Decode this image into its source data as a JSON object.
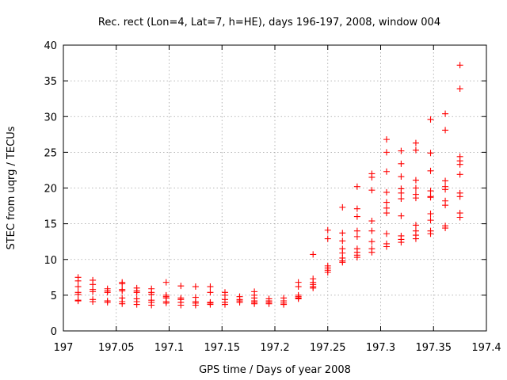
{
  "chart_data": {
    "type": "scatter",
    "title": "Rec. rect (Lon=4, Lat=7, h=HE), days 196-197, 2008, window 004",
    "xlabel": "GPS time / Days of year 2008",
    "ylabel": "STEC from uqrg / TECUs",
    "xlim": [
      197,
      197.4
    ],
    "ylim": [
      0,
      40
    ],
    "xticks": [
      197,
      197.05,
      197.1,
      197.15,
      197.2,
      197.25,
      197.3,
      197.35,
      197.4
    ],
    "xtick_labels": [
      "197",
      "197.05",
      "197.1",
      "197.15",
      "197.2",
      "197.25",
      "197.3",
      "197.35",
      "197.4"
    ],
    "yticks": [
      0,
      5,
      10,
      15,
      20,
      25,
      30,
      35,
      40
    ],
    "ytick_labels": [
      "0",
      "5",
      "10",
      "15",
      "20",
      "25",
      "30",
      "35",
      "40"
    ],
    "grid": true,
    "legend": "none",
    "marker": "plus",
    "color": "#ff0000",
    "series": [
      {
        "points": [
          [
            197.0139,
            7.5
          ],
          [
            197.0139,
            7.0
          ],
          [
            197.0139,
            6.2
          ],
          [
            197.0139,
            5.4
          ],
          [
            197.0139,
            5.1
          ],
          [
            197.0139,
            4.3
          ],
          [
            197.0139,
            4.2
          ],
          [
            197.0278,
            7.1
          ],
          [
            197.0278,
            6.5
          ],
          [
            197.0278,
            5.8
          ],
          [
            197.0278,
            5.5
          ],
          [
            197.0278,
            4.4
          ],
          [
            197.0278,
            4.1
          ],
          [
            197.0417,
            5.9
          ],
          [
            197.0417,
            5.6
          ],
          [
            197.0417,
            5.4
          ],
          [
            197.0417,
            4.2
          ],
          [
            197.0417,
            4.0
          ],
          [
            197.0556,
            6.8
          ],
          [
            197.0556,
            6.6
          ],
          [
            197.0556,
            5.8
          ],
          [
            197.0556,
            5.6
          ],
          [
            197.0556,
            4.6
          ],
          [
            197.0556,
            4.1
          ],
          [
            197.0556,
            3.8
          ],
          [
            197.0694,
            6.0
          ],
          [
            197.0694,
            5.6
          ],
          [
            197.0694,
            5.4
          ],
          [
            197.0694,
            4.5
          ],
          [
            197.0694,
            4.1
          ],
          [
            197.0694,
            3.7
          ],
          [
            197.0833,
            5.9
          ],
          [
            197.0833,
            5.4
          ],
          [
            197.0833,
            5.1
          ],
          [
            197.0833,
            4.3
          ],
          [
            197.0833,
            4.0
          ],
          [
            197.0833,
            3.6
          ],
          [
            197.0972,
            6.8
          ],
          [
            197.0972,
            5.0
          ],
          [
            197.0972,
            4.8
          ],
          [
            197.0972,
            4.6
          ],
          [
            197.0972,
            4.1
          ],
          [
            197.0972,
            3.9
          ],
          [
            197.1111,
            6.3
          ],
          [
            197.1111,
            4.6
          ],
          [
            197.1111,
            4.4
          ],
          [
            197.1111,
            4.0
          ],
          [
            197.1111,
            3.6
          ],
          [
            197.125,
            6.2
          ],
          [
            197.125,
            4.7
          ],
          [
            197.125,
            4.1
          ],
          [
            197.125,
            3.9
          ],
          [
            197.125,
            3.6
          ],
          [
            197.1389,
            6.2
          ],
          [
            197.1389,
            5.4
          ],
          [
            197.1389,
            4.0
          ],
          [
            197.1389,
            3.9
          ],
          [
            197.1389,
            3.7
          ],
          [
            197.1528,
            5.4
          ],
          [
            197.1528,
            5.0
          ],
          [
            197.1528,
            4.4
          ],
          [
            197.1528,
            4.0
          ],
          [
            197.1528,
            3.7
          ],
          [
            197.1667,
            4.8
          ],
          [
            197.1667,
            4.4
          ],
          [
            197.1667,
            4.2
          ],
          [
            197.1667,
            4.0
          ],
          [
            197.1806,
            5.5
          ],
          [
            197.1806,
            5.0
          ],
          [
            197.1806,
            4.6
          ],
          [
            197.1806,
            4.2
          ],
          [
            197.1806,
            4.0
          ],
          [
            197.1806,
            3.8
          ],
          [
            197.1944,
            4.5
          ],
          [
            197.1944,
            4.2
          ],
          [
            197.1944,
            4.0
          ],
          [
            197.1944,
            3.8
          ],
          [
            197.2083,
            4.6
          ],
          [
            197.2083,
            4.2
          ],
          [
            197.2083,
            3.9
          ],
          [
            197.2083,
            3.7
          ],
          [
            197.2222,
            6.8
          ],
          [
            197.2222,
            6.2
          ],
          [
            197.2222,
            5.0
          ],
          [
            197.2222,
            4.8
          ],
          [
            197.2222,
            4.6
          ],
          [
            197.2222,
            4.5
          ],
          [
            197.2361,
            10.7
          ],
          [
            197.2361,
            7.3
          ],
          [
            197.2361,
            6.8
          ],
          [
            197.2361,
            6.5
          ],
          [
            197.2361,
            6.2
          ],
          [
            197.2361,
            6.0
          ],
          [
            197.25,
            14.1
          ],
          [
            197.25,
            12.9
          ],
          [
            197.25,
            9.1
          ],
          [
            197.25,
            8.8
          ],
          [
            197.25,
            8.5
          ],
          [
            197.25,
            8.2
          ],
          [
            197.2639,
            17.3
          ],
          [
            197.2639,
            13.7
          ],
          [
            197.2639,
            12.6
          ],
          [
            197.2639,
            11.5
          ],
          [
            197.2639,
            10.9
          ],
          [
            197.2639,
            10.2
          ],
          [
            197.2639,
            9.8
          ],
          [
            197.2639,
            9.6
          ],
          [
            197.2778,
            20.2
          ],
          [
            197.2778,
            17.1
          ],
          [
            197.2778,
            16.0
          ],
          [
            197.2778,
            14.0
          ],
          [
            197.2778,
            13.2
          ],
          [
            197.2778,
            11.5
          ],
          [
            197.2778,
            11.0
          ],
          [
            197.2778,
            10.6
          ],
          [
            197.2778,
            10.3
          ],
          [
            197.2917,
            22.0
          ],
          [
            197.2917,
            21.5
          ],
          [
            197.2917,
            19.7
          ],
          [
            197.2917,
            15.4
          ],
          [
            197.2917,
            14.0
          ],
          [
            197.2917,
            12.5
          ],
          [
            197.2917,
            11.5
          ],
          [
            197.2917,
            11.0
          ],
          [
            197.3056,
            26.8
          ],
          [
            197.3056,
            25.0
          ],
          [
            197.3056,
            22.3
          ],
          [
            197.3056,
            19.4
          ],
          [
            197.3056,
            18.0
          ],
          [
            197.3056,
            17.2
          ],
          [
            197.3056,
            16.5
          ],
          [
            197.3056,
            13.6
          ],
          [
            197.3056,
            12.2
          ],
          [
            197.3056,
            11.8
          ],
          [
            197.3194,
            25.2
          ],
          [
            197.3194,
            23.4
          ],
          [
            197.3194,
            21.6
          ],
          [
            197.3194,
            19.9
          ],
          [
            197.3194,
            19.3
          ],
          [
            197.3194,
            18.5
          ],
          [
            197.3194,
            16.1
          ],
          [
            197.3194,
            13.3
          ],
          [
            197.3194,
            12.8
          ],
          [
            197.3194,
            12.4
          ],
          [
            197.3333,
            26.3
          ],
          [
            197.3333,
            25.3
          ],
          [
            197.3333,
            21.1
          ],
          [
            197.3333,
            20.0
          ],
          [
            197.3333,
            19.1
          ],
          [
            197.3333,
            18.6
          ],
          [
            197.3333,
            14.8
          ],
          [
            197.3333,
            14.0
          ],
          [
            197.3333,
            13.4
          ],
          [
            197.3333,
            12.9
          ],
          [
            197.3472,
            29.6
          ],
          [
            197.3472,
            24.9
          ],
          [
            197.3472,
            22.4
          ],
          [
            197.3472,
            19.6
          ],
          [
            197.3472,
            18.8
          ],
          [
            197.3472,
            18.7
          ],
          [
            197.3472,
            16.4
          ],
          [
            197.3472,
            15.5
          ],
          [
            197.3472,
            14.0
          ],
          [
            197.3472,
            13.6
          ],
          [
            197.3611,
            30.4
          ],
          [
            197.3611,
            28.1
          ],
          [
            197.3611,
            21.0
          ],
          [
            197.3611,
            20.2
          ],
          [
            197.3611,
            19.8
          ],
          [
            197.3611,
            18.2
          ],
          [
            197.3611,
            17.6
          ],
          [
            197.3611,
            14.7
          ],
          [
            197.3611,
            14.4
          ],
          [
            197.375,
            37.2
          ],
          [
            197.375,
            33.9
          ],
          [
            197.375,
            24.4
          ],
          [
            197.375,
            23.8
          ],
          [
            197.375,
            23.3
          ],
          [
            197.375,
            21.9
          ],
          [
            197.375,
            19.3
          ],
          [
            197.375,
            18.8
          ],
          [
            197.375,
            16.5
          ],
          [
            197.375,
            15.9
          ]
        ]
      }
    ]
  }
}
